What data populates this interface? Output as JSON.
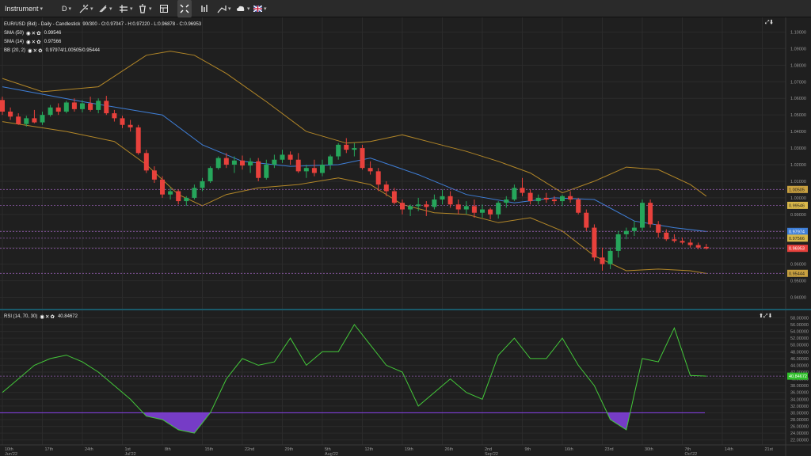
{
  "toolbar": {
    "instrument_label": "Instrument",
    "timeframe_label": "D",
    "items": [
      {
        "name": "crosshair-icon"
      },
      {
        "name": "line-tool-icon"
      },
      {
        "name": "pen-tool-icon"
      },
      {
        "name": "shapes-icon"
      },
      {
        "name": "trash-icon"
      },
      {
        "name": "layout-icon"
      },
      {
        "name": "fullscreen-icon"
      },
      {
        "name": "chart-type-icon"
      },
      {
        "name": "trade-arrow-icon"
      },
      {
        "name": "cloud-icon"
      },
      {
        "name": "flag-icon"
      }
    ]
  },
  "legend": {
    "main_title": "EUR/USD (Bid) - Daily - Candlestick",
    "ohlc": "90/300 - O:0.97047 - H:0.97220 - L:0.96878 - C:0.96953",
    "sma50_label": "SMA (50)",
    "sma50_value": "0.99546",
    "sma14_label": "SMA (14)",
    "sma14_value": "0.97566",
    "bb_label": "BB (20, 2)",
    "bb_value": "0.97974/1.00505/0.95444",
    "rsi_label": "RSI (14, 70, 30)",
    "rsi_value": "40.84672"
  },
  "colors": {
    "bull": "#26a65b",
    "bear": "#e8413c",
    "sma": "#3f7fd8",
    "bb": "#b38728",
    "rsi": "#44c93a",
    "oversold_fill": "#7f3fd8",
    "level_line": "#8e5aa8"
  },
  "chart_data": [
    {
      "type": "candlestick",
      "instrument": "EUR/USD (Bid)",
      "timeframe": "Daily",
      "ylim": [
        0.935,
        1.105
      ],
      "y_ticks": [
        "1.10000",
        "1.09000",
        "1.08000",
        "1.07000",
        "1.06000",
        "1.05000",
        "1.04000",
        "1.03000",
        "1.02000",
        "1.01000",
        "1.00000",
        "0.99000",
        "0.98000",
        "0.97000",
        "0.96000",
        "0.95000",
        "0.94000"
      ],
      "x_ticks": [
        {
          "i": 0,
          "label": "10th",
          "sub": "Jun'22"
        },
        {
          "i": 5,
          "label": "17th",
          "sub": ""
        },
        {
          "i": 10,
          "label": "24th",
          "sub": ""
        },
        {
          "i": 15,
          "label": "1st",
          "sub": "Jul'22"
        },
        {
          "i": 20,
          "label": "8th",
          "sub": ""
        },
        {
          "i": 25,
          "label": "15th",
          "sub": ""
        },
        {
          "i": 30,
          "label": "22nd",
          "sub": ""
        },
        {
          "i": 35,
          "label": "29th",
          "sub": ""
        },
        {
          "i": 40,
          "label": "5th",
          "sub": "Aug'22"
        },
        {
          "i": 45,
          "label": "12th",
          "sub": ""
        },
        {
          "i": 50,
          "label": "19th",
          "sub": ""
        },
        {
          "i": 55,
          "label": "26th",
          "sub": ""
        },
        {
          "i": 60,
          "label": "2nd",
          "sub": "Sep'22"
        },
        {
          "i": 65,
          "label": "9th",
          "sub": ""
        },
        {
          "i": 70,
          "label": "16th",
          "sub": ""
        },
        {
          "i": 75,
          "label": "23rd",
          "sub": ""
        },
        {
          "i": 80,
          "label": "30th",
          "sub": ""
        },
        {
          "i": 85,
          "label": "7th",
          "sub": "Oct'22"
        },
        {
          "i": 90,
          "label": "14th",
          "sub": ""
        },
        {
          "i": 95,
          "label": "21st",
          "sub": ""
        }
      ],
      "candles": [
        [
          1.059,
          1.061,
          1.05,
          1.052
        ],
        [
          1.052,
          1.0545,
          1.047,
          1.049
        ],
        [
          1.049,
          1.051,
          1.044,
          1.0445
        ],
        [
          1.0445,
          1.0495,
          1.043,
          1.048
        ],
        [
          1.048,
          1.053,
          1.045,
          1.0455
        ],
        [
          1.0455,
          1.052,
          1.044,
          1.05
        ],
        [
          1.05,
          1.056,
          1.049,
          1.0545
        ],
        [
          1.0545,
          1.057,
          1.05,
          1.052
        ],
        [
          1.052,
          1.0585,
          1.051,
          1.0575
        ],
        [
          1.0575,
          1.06,
          1.052,
          1.0535
        ],
        [
          1.0535,
          1.059,
          1.0515,
          1.057
        ],
        [
          1.057,
          1.061,
          1.052,
          1.053
        ],
        [
          1.053,
          1.06,
          1.051,
          1.0585
        ],
        [
          1.0585,
          1.0615,
          1.05,
          1.051
        ],
        [
          1.051,
          1.053,
          1.046,
          1.048
        ],
        [
          1.048,
          1.0495,
          1.042,
          1.044
        ],
        [
          1.044,
          1.047,
          1.04,
          1.0425
        ],
        [
          1.0425,
          1.044,
          1.026,
          1.027
        ],
        [
          1.027,
          1.029,
          1.015,
          1.0165
        ],
        [
          1.0165,
          1.019,
          1.009,
          1.011
        ],
        [
          1.011,
          1.013,
          1.0,
          1.002
        ],
        [
          1.002,
          1.006,
          0.999,
          1.004
        ],
        [
          1.004,
          1.005,
          0.996,
          0.998
        ],
        [
          0.998,
          1.001,
          0.9952,
          1.0
        ],
        [
          1.0,
          1.008,
          0.999,
          1.006
        ],
        [
          1.006,
          1.012,
          1.004,
          1.01
        ],
        [
          1.01,
          1.019,
          1.009,
          1.018
        ],
        [
          1.018,
          1.025,
          1.017,
          1.024
        ],
        [
          1.024,
          1.027,
          1.018,
          1.02
        ],
        [
          1.02,
          1.025,
          1.015,
          1.0225
        ],
        [
          1.0225,
          1.0255,
          1.017,
          1.0195
        ],
        [
          1.0195,
          1.024,
          1.015,
          1.022
        ],
        [
          1.022,
          1.024,
          1.01,
          1.012
        ],
        [
          1.012,
          1.023,
          1.011,
          1.02
        ],
        [
          1.02,
          1.026,
          1.018,
          1.023
        ],
        [
          1.023,
          1.029,
          1.021,
          1.026
        ],
        [
          1.026,
          1.028,
          1.02,
          1.023
        ],
        [
          1.023,
          1.027,
          1.015,
          1.016
        ],
        [
          1.016,
          1.02,
          1.012,
          1.018
        ],
        [
          1.018,
          1.023,
          1.013,
          1.015
        ],
        [
          1.015,
          1.023,
          1.013,
          1.02
        ],
        [
          1.02,
          1.026,
          1.017,
          1.025
        ],
        [
          1.025,
          1.033,
          1.023,
          1.032
        ],
        [
          1.032,
          1.036,
          1.027,
          1.029
        ],
        [
          1.029,
          1.033,
          1.025,
          1.03
        ],
        [
          1.03,
          1.032,
          1.017,
          1.018
        ],
        [
          1.018,
          1.022,
          1.014,
          1.016
        ],
        [
          1.016,
          1.018,
          1.004,
          1.008
        ],
        [
          1.008,
          1.01,
          1.001,
          1.004
        ],
        [
          1.004,
          1.006,
          0.996,
          0.997
        ],
        [
          0.997,
          0.999,
          0.99,
          0.993
        ],
        [
          0.993,
          0.996,
          0.989,
          0.995
        ],
        [
          0.995,
          1.0,
          0.992,
          0.996
        ],
        [
          0.996,
          0.998,
          0.989,
          0.9945
        ],
        [
          0.9945,
          1.002,
          0.993,
          0.999
        ],
        [
          0.999,
          1.005,
          0.996,
          1.001
        ],
        [
          1.001,
          1.004,
          0.994,
          0.996
        ],
        [
          0.996,
          0.999,
          0.99,
          0.993
        ],
        [
          0.993,
          0.998,
          0.99,
          0.995
        ],
        [
          0.995,
          0.999,
          0.988,
          0.991
        ],
        [
          0.991,
          0.996,
          0.988,
          0.993
        ],
        [
          0.993,
          0.994,
          0.987,
          0.99
        ],
        [
          0.99,
          0.998,
          0.9875,
          0.997
        ],
        [
          0.997,
          1.001,
          0.994,
          0.999
        ],
        [
          0.999,
          1.008,
          0.998,
          1.006
        ],
        [
          1.006,
          1.012,
          1.001,
          1.003
        ],
        [
          1.003,
          1.005,
          0.996,
          0.998
        ],
        [
          0.998,
          1.002,
          0.996,
          1.0
        ],
        [
          1.0,
          1.003,
          0.997,
          0.999
        ],
        [
          0.999,
          1.001,
          0.996,
          0.998
        ],
        [
          0.998,
          1.002,
          0.995,
          1.001
        ],
        [
          1.001,
          1.004,
          0.997,
          0.999
        ],
        [
          0.999,
          1.0,
          0.99,
          0.991
        ],
        [
          0.991,
          0.993,
          0.98,
          0.982
        ],
        [
          0.982,
          0.984,
          0.962,
          0.964
        ],
        [
          0.964,
          0.97,
          0.956,
          0.96
        ],
        [
          0.96,
          0.97,
          0.957,
          0.968
        ],
        [
          0.968,
          0.98,
          0.964,
          0.978
        ],
        [
          0.978,
          0.982,
          0.975,
          0.98
        ],
        [
          0.98,
          0.986,
          0.977,
          0.982
        ],
        [
          0.982,
          0.999,
          0.98,
          0.997
        ],
        [
          0.997,
          0.999,
          0.982,
          0.984
        ],
        [
          0.984,
          0.986,
          0.976,
          0.979
        ],
        [
          0.979,
          0.981,
          0.974,
          0.975
        ],
        [
          0.975,
          0.978,
          0.973,
          0.974
        ],
        [
          0.974,
          0.976,
          0.972,
          0.973
        ],
        [
          0.973,
          0.975,
          0.97,
          0.9715
        ],
        [
          0.9715,
          0.973,
          0.969,
          0.97
        ],
        [
          0.9704,
          0.9722,
          0.9688,
          0.9695
        ]
      ],
      "sma14": [
        [
          0,
          1.067
        ],
        [
          10,
          1.058
        ],
        [
          20,
          1.05
        ],
        [
          25,
          1.032
        ],
        [
          30,
          1.022
        ],
        [
          36,
          1.019
        ],
        [
          42,
          1.02
        ],
        [
          46,
          1.024
        ],
        [
          52,
          1.014
        ],
        [
          58,
          1.002
        ],
        [
          64,
          0.997
        ],
        [
          69,
          1.0
        ],
        [
          74,
          0.999
        ],
        [
          79,
          0.986
        ],
        [
          84,
          0.982
        ],
        [
          88,
          0.9797
        ]
      ],
      "bb_upper": [
        [
          0,
          1.072
        ],
        [
          5,
          1.064
        ],
        [
          12,
          1.067
        ],
        [
          18,
          1.086
        ],
        [
          21,
          1.0885
        ],
        [
          24,
          1.086
        ],
        [
          28,
          1.075
        ],
        [
          33,
          1.058
        ],
        [
          38,
          1.04
        ],
        [
          43,
          1.033
        ],
        [
          46,
          1.034
        ],
        [
          50,
          1.038
        ],
        [
          54,
          1.033
        ],
        [
          58,
          1.028
        ],
        [
          62,
          1.022
        ],
        [
          66,
          1.015
        ],
        [
          70,
          1.003
        ],
        [
          74,
          1.01
        ],
        [
          78,
          1.0185
        ],
        [
          82,
          1.017
        ],
        [
          86,
          1.008
        ],
        [
          88,
          1.001
        ]
      ],
      "bb_lower": [
        [
          0,
          1.046
        ],
        [
          8,
          1.04
        ],
        [
          14,
          1.034
        ],
        [
          18,
          1.02
        ],
        [
          22,
          1.002
        ],
        [
          25,
          0.9952
        ],
        [
          28,
          1.002
        ],
        [
          32,
          1.006
        ],
        [
          37,
          1.008
        ],
        [
          42,
          1.012
        ],
        [
          46,
          1.008
        ],
        [
          50,
          0.996
        ],
        [
          54,
          0.991
        ],
        [
          58,
          0.99
        ],
        [
          62,
          0.985
        ],
        [
          66,
          0.988
        ],
        [
          70,
          0.98
        ],
        [
          74,
          0.965
        ],
        [
          78,
          0.956
        ],
        [
          82,
          0.957
        ],
        [
          86,
          0.956
        ],
        [
          88,
          0.9544
        ]
      ],
      "price_labels": [
        {
          "value": 1.00505,
          "text": "1.00505",
          "bg": "#c8a040",
          "fg": "#1b1b1b"
        },
        {
          "value": 0.99546,
          "text": "0.99546",
          "bg": "#d9b84a",
          "fg": "#1b1b1b"
        },
        {
          "value": 0.97974,
          "text": "0.97974",
          "bg": "#3f7fd8",
          "fg": "#ffffff"
        },
        {
          "value": 0.97566,
          "text": "0.97566",
          "bg": "#d9b84a",
          "fg": "#1b1b1b"
        },
        {
          "value": 0.96953,
          "text": "0.96953",
          "bg": "#e8413c",
          "fg": "#ffffff"
        },
        {
          "value": 0.95444,
          "text": "0.95444",
          "bg": "#c8a040",
          "fg": "#1b1b1b"
        }
      ]
    },
    {
      "type": "line",
      "name": "RSI (14, 70, 30)",
      "ylim": [
        21,
        58.8
      ],
      "y_ticks": [
        "58.00000",
        "56.00000",
        "54.00000",
        "52.00000",
        "50.00000",
        "48.00000",
        "46.00000",
        "44.00000",
        "42.00000",
        "40.00000",
        "38.00000",
        "36.00000",
        "34.00000",
        "32.00000",
        "30.00000",
        "28.00000",
        "26.00000",
        "24.00000",
        "22.00000"
      ],
      "oversold_level": 30,
      "value_label": "40.84672",
      "x": [
        0,
        2,
        4,
        6,
        8,
        10,
        12,
        14,
        16,
        18,
        20,
        22,
        24,
        26,
        28,
        30,
        32,
        34,
        36,
        38,
        40,
        42,
        44,
        46,
        48,
        50,
        52,
        54,
        56,
        58,
        60,
        62,
        64,
        66,
        68,
        70,
        72,
        74,
        76,
        78,
        80,
        82,
        84,
        86,
        88
      ],
      "values": [
        36,
        40,
        44,
        46,
        47,
        45,
        42,
        38,
        34,
        29,
        28,
        25,
        24,
        30,
        40,
        46,
        44,
        45,
        52,
        44,
        48,
        48,
        56,
        50,
        44,
        42,
        32,
        36,
        40,
        36,
        34,
        47,
        52,
        46,
        46,
        52,
        44,
        38,
        28,
        25,
        46,
        45,
        55,
        41,
        40.8
      ]
    }
  ]
}
